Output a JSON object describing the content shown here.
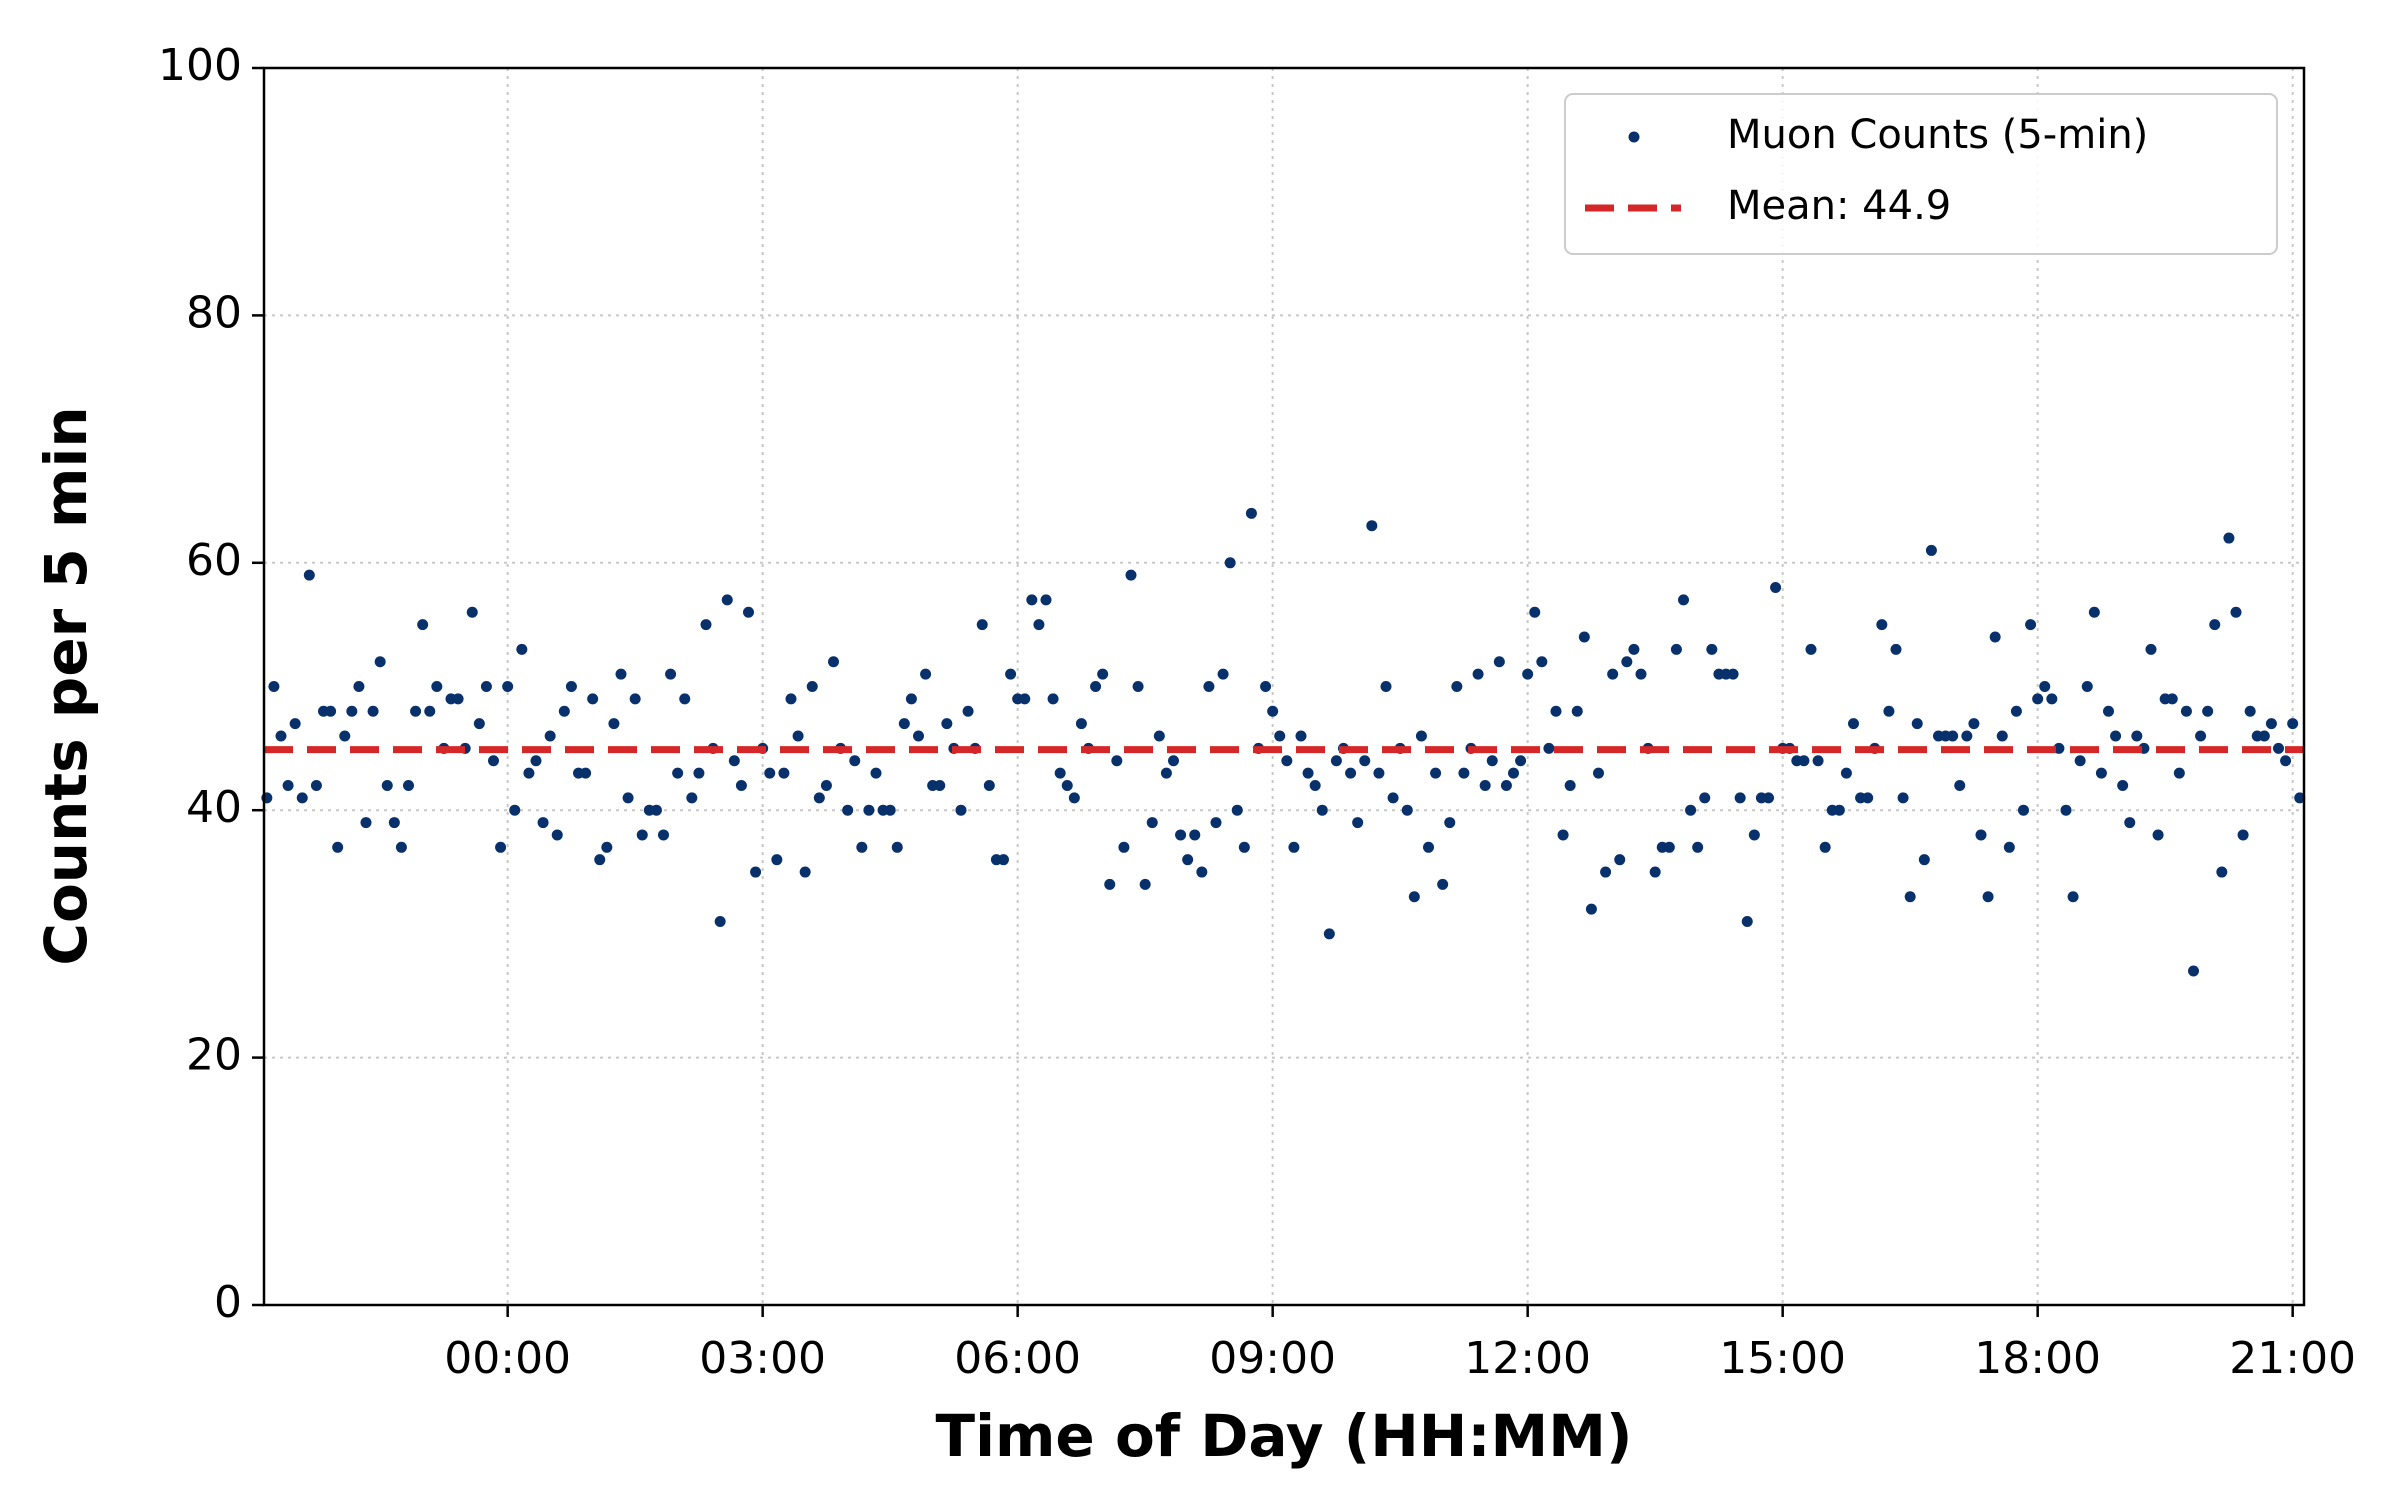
{
  "chart_data": {
    "type": "scatter",
    "x_label": "Time of Day (HH:MM)",
    "y_label": "Counts per 5 min",
    "xlim": [
      -172,
      1268
    ],
    "ylim": [
      0,
      100
    ],
    "xticks": [
      {
        "value": 0,
        "label": "00:00"
      },
      {
        "value": 180,
        "label": "03:00"
      },
      {
        "value": 360,
        "label": "06:00"
      },
      {
        "value": 540,
        "label": "09:00"
      },
      {
        "value": 720,
        "label": "12:00"
      },
      {
        "value": 900,
        "label": "15:00"
      },
      {
        "value": 1080,
        "label": "18:00"
      },
      {
        "value": 1260,
        "label": "21:00"
      }
    ],
    "yticks": [
      0,
      20,
      40,
      60,
      80,
      100
    ],
    "grid": true,
    "legend": "upper right",
    "series": [
      {
        "name": "Muon Counts (5-min)",
        "color": "#08306b",
        "x": [
          -170,
          -165,
          -160,
          -155,
          -150,
          -145,
          -140,
          -135,
          -130,
          -125,
          -120,
          -115,
          -110,
          -105,
          -100,
          -95,
          -90,
          -85,
          -80,
          -75,
          -70,
          -65,
          -60,
          -55,
          -50,
          -45,
          -40,
          -35,
          -30,
          -25,
          -20,
          -15,
          -10,
          -5,
          0,
          5,
          10,
          15,
          20,
          25,
          30,
          35,
          40,
          45,
          50,
          55,
          60,
          65,
          70,
          75,
          80,
          85,
          90,
          95,
          100,
          105,
          110,
          115,
          120,
          125,
          130,
          135,
          140,
          145,
          150,
          155,
          160,
          165,
          170,
          175,
          180,
          185,
          190,
          195,
          200,
          205,
          210,
          215,
          220,
          225,
          230,
          235,
          240,
          245,
          250,
          255,
          260,
          265,
          270,
          275,
          280,
          285,
          290,
          295,
          300,
          305,
          310,
          315,
          320,
          325,
          330,
          335,
          340,
          345,
          350,
          355,
          360,
          365,
          370,
          375,
          380,
          385,
          390,
          395,
          400,
          405,
          410,
          415,
          420,
          425,
          430,
          435,
          440,
          445,
          450,
          455,
          460,
          465,
          470,
          475,
          480,
          485,
          490,
          495,
          500,
          505,
          510,
          515,
          520,
          525,
          530,
          535,
          540,
          545,
          550,
          555,
          560,
          565,
          570,
          575,
          580,
          585,
          590,
          595,
          600,
          605,
          610,
          615,
          620,
          625,
          630,
          635,
          640,
          645,
          650,
          655,
          660,
          665,
          670,
          675,
          680,
          685,
          690,
          695,
          700,
          705,
          710,
          715,
          720,
          725,
          730,
          735,
          740,
          745,
          750,
          755,
          760,
          765,
          770,
          775,
          780,
          785,
          790,
          795,
          800,
          805,
          810,
          815,
          820,
          825,
          830,
          835,
          840,
          845,
          850,
          855,
          860,
          865,
          870,
          875,
          880,
          885,
          890,
          895,
          900,
          905,
          910,
          915,
          920,
          925,
          930,
          935,
          940,
          945,
          950,
          955,
          960,
          965,
          970,
          975,
          980,
          985,
          990,
          995,
          1000,
          1005,
          1010,
          1015,
          1020,
          1025,
          1030,
          1035,
          1040,
          1045,
          1050,
          1055,
          1060,
          1065,
          1070,
          1075,
          1080,
          1085,
          1090,
          1095,
          1100,
          1105,
          1110,
          1115,
          1120,
          1125,
          1130,
          1135,
          1140,
          1145,
          1150,
          1155,
          1160,
          1165,
          1170,
          1175,
          1180,
          1185,
          1190,
          1195,
          1200,
          1205,
          1210,
          1215,
          1220,
          1225,
          1230,
          1235,
          1240,
          1245,
          1250,
          1255,
          1260,
          1265
        ],
        "values": [
          41,
          50,
          46,
          42,
          47,
          41,
          59,
          42,
          48,
          48,
          37,
          46,
          48,
          50,
          39,
          48,
          52,
          42,
          39,
          37,
          42,
          48,
          55,
          48,
          50,
          45,
          49,
          49,
          45,
          56,
          47,
          50,
          44,
          37,
          50,
          40,
          53,
          43,
          44,
          39,
          46,
          38,
          48,
          50,
          43,
          43,
          49,
          36,
          37,
          47,
          51,
          41,
          49,
          38,
          40,
          40,
          38,
          51,
          43,
          49,
          41,
          43,
          55,
          45,
          31,
          57,
          44,
          42,
          56,
          35,
          45,
          43,
          36,
          43,
          49,
          46,
          35,
          50,
          41,
          42,
          52,
          45,
          40,
          44,
          37,
          40,
          43,
          40,
          40,
          37,
          47,
          49,
          46,
          51,
          42,
          42,
          47,
          45,
          40,
          48,
          45,
          55,
          42,
          36,
          36,
          51,
          49,
          49,
          57,
          55,
          57,
          49,
          43,
          42,
          41,
          47,
          45,
          50,
          51,
          34,
          44,
          37,
          59,
          50,
          34,
          39,
          46,
          43,
          44,
          38,
          36,
          38,
          35,
          50,
          39,
          51,
          60,
          40,
          37,
          64,
          45,
          50,
          48,
          46,
          44,
          37,
          46,
          43,
          42,
          40,
          30,
          44,
          45,
          43,
          39,
          44,
          63,
          43,
          50,
          41,
          45,
          40,
          33,
          46,
          37,
          43,
          34,
          39,
          50,
          43,
          45,
          51,
          42,
          44,
          52,
          42,
          43,
          44,
          51,
          56,
          52,
          45,
          48,
          38,
          42,
          48,
          54,
          32,
          43,
          35,
          51,
          36,
          52,
          53,
          51,
          45,
          35,
          37,
          37,
          53,
          57,
          40,
          37,
          41,
          53,
          51,
          51,
          51,
          41,
          31,
          38,
          41,
          41,
          58,
          45,
          45,
          44,
          44,
          53,
          44,
          37,
          40,
          40,
          43,
          47,
          41,
          41,
          45,
          55,
          48,
          53,
          41,
          33,
          47,
          36,
          61,
          46,
          46,
          46,
          42,
          46,
          47,
          38,
          33,
          54,
          46,
          37,
          48,
          40,
          55,
          49,
          50,
          49,
          45,
          40,
          33,
          44,
          50,
          56,
          43,
          48,
          46,
          42,
          39,
          46,
          45,
          53,
          38,
          49,
          49,
          43,
          48,
          27,
          46,
          48,
          55,
          35,
          62,
          56,
          38,
          48,
          46,
          46,
          47,
          45,
          44,
          47,
          41
        ]
      }
    ],
    "mean": {
      "name": "Mean: 44.9",
      "value": 44.9,
      "color": "#d62728"
    }
  }
}
